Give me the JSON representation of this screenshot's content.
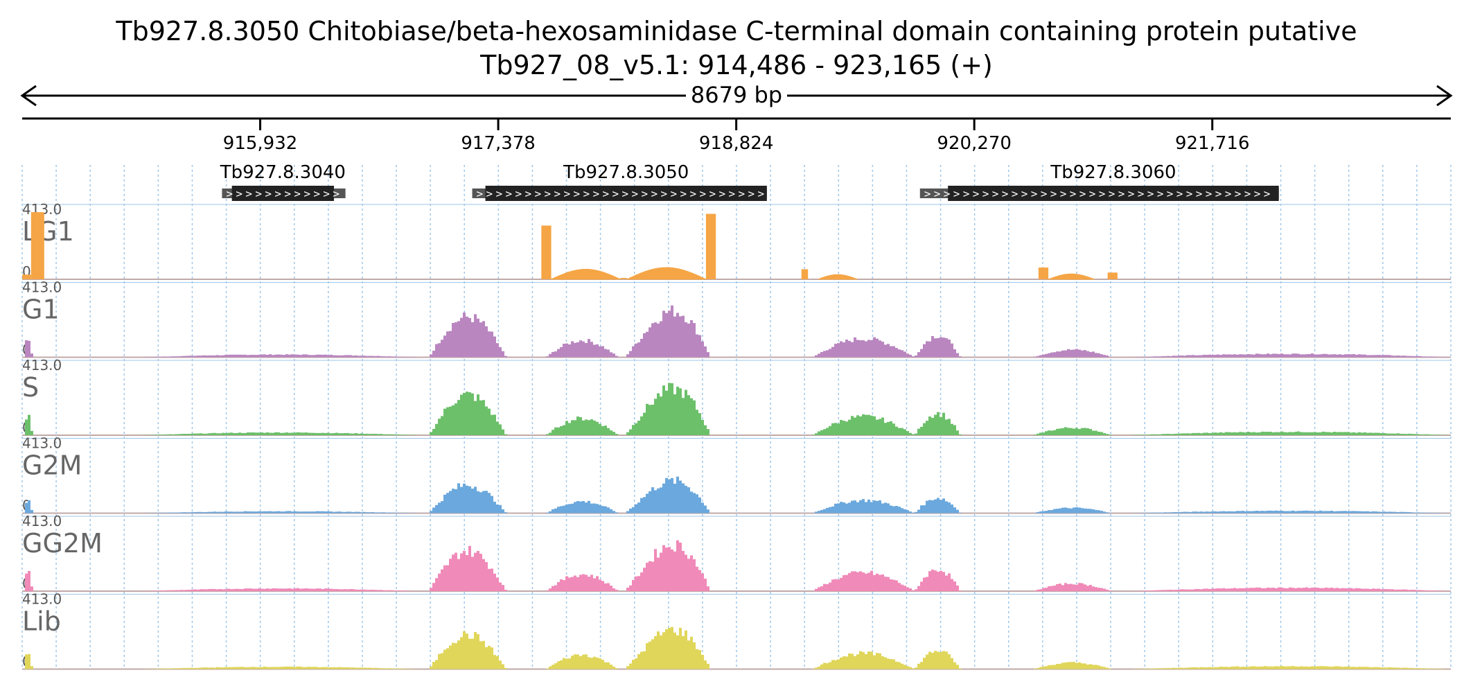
{
  "chart_data": {
    "type": "area",
    "title": "Tb927.8.3050  Chitobiase/beta-hexosaminidase C-terminal domain containing protein  putative",
    "subtitle": "Tb927_08_v5.1: 914,486 - 923,165 (+)",
    "span_label": "8679 bp",
    "region": {
      "start": 914486,
      "end": 923165
    },
    "ticks": [
      {
        "pos": 915932,
        "label": "915,932"
      },
      {
        "pos": 917378,
        "label": "917,378"
      },
      {
        "pos": 918824,
        "label": "918,824"
      },
      {
        "pos": 920270,
        "label": "920,270"
      },
      {
        "pos": 921716,
        "label": "921,716"
      }
    ],
    "genes": [
      {
        "name": "Tb927.8.3040",
        "utr_start": 915700,
        "cds_start": 915760,
        "cds_end": 916380,
        "utr_end": 916450,
        "strand": "+"
      },
      {
        "name": "Tb927.8.3050",
        "utr_start": 917220,
        "cds_start": 917300,
        "cds_end": 919010,
        "utr_end": 919010,
        "strand": "+"
      },
      {
        "name": "Tb927.8.3060",
        "utr_start": 919940,
        "cds_start": 920110,
        "cds_end": 922120,
        "utr_end": 922120,
        "strand": "+"
      }
    ],
    "y_max_label": "413.0",
    "y_min_label": "0",
    "y_range": [
      0,
      413
    ],
    "tracks": [
      {
        "name": "LG1",
        "color": "#f5a545",
        "segments": [
          [
            914486,
            914540,
            28
          ],
          [
            914540,
            914620,
            400
          ],
          [
            917640,
            917700,
            320
          ],
          [
            917700,
            917680,
            0
          ],
          [
            917700,
            918120,
            60
          ],
          [
            918120,
            918160,
            8
          ],
          [
            918160,
            918640,
            70
          ],
          [
            918640,
            918700,
            390
          ],
          [
            919220,
            919260,
            60
          ],
          [
            919320,
            919560,
            28
          ],
          [
            920660,
            920720,
            70
          ],
          [
            920720,
            921000,
            32
          ],
          [
            921080,
            921140,
            40
          ]
        ],
        "shape": "hump"
      },
      {
        "name": "G1",
        "color": "#b986c0",
        "hump_scale": 1.0
      },
      {
        "name": "S",
        "color": "#6cc06a",
        "hump_scale": 1.0
      },
      {
        "name": "G2M",
        "color": "#6aa8dd",
        "hump_scale": 0.7
      },
      {
        "name": "GG2M",
        "color": "#f08ab8",
        "hump_scale": 1.0
      },
      {
        "name": "Lib",
        "color": "#e0d65a",
        "hump_scale": 0.85
      }
    ],
    "colors": {
      "gene_box": "#222222",
      "utr_box": "#555555",
      "grid": "#9ec6e8",
      "baseline": "#c0a9a9"
    },
    "grid": true
  }
}
